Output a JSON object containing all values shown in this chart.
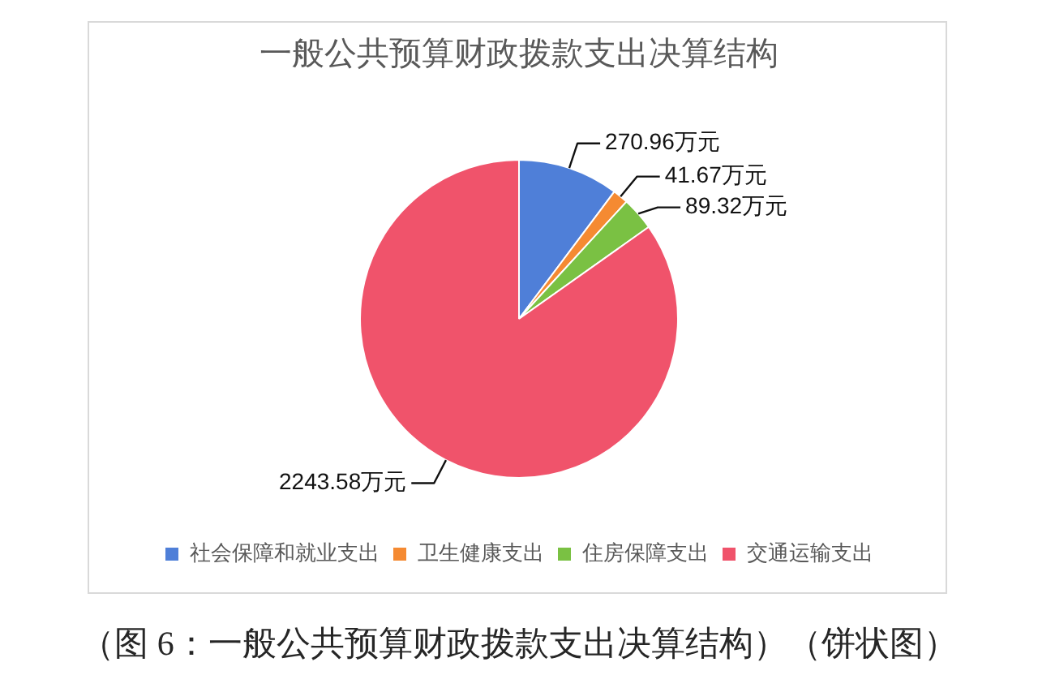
{
  "chart_data": {
    "type": "pie",
    "title": "一般公共预算财政拨款支出决算结构",
    "categories": [
      "社会保障和就业支出",
      "卫生健康支出",
      "住房保障支出",
      "交通运输支出"
    ],
    "values": [
      270.96,
      41.67,
      89.32,
      2243.58
    ],
    "colors": [
      "#4f7fd8",
      "#f58a32",
      "#7ac143",
      "#f0536b"
    ],
    "value_labels": [
      "270.96万元",
      "41.67万元",
      "89.32万元",
      "2243.58万元"
    ],
    "legend": "bottom",
    "annotations": [
      "（图 6：一般公共预算财政拨款支出决算结构）（饼状图）"
    ]
  }
}
